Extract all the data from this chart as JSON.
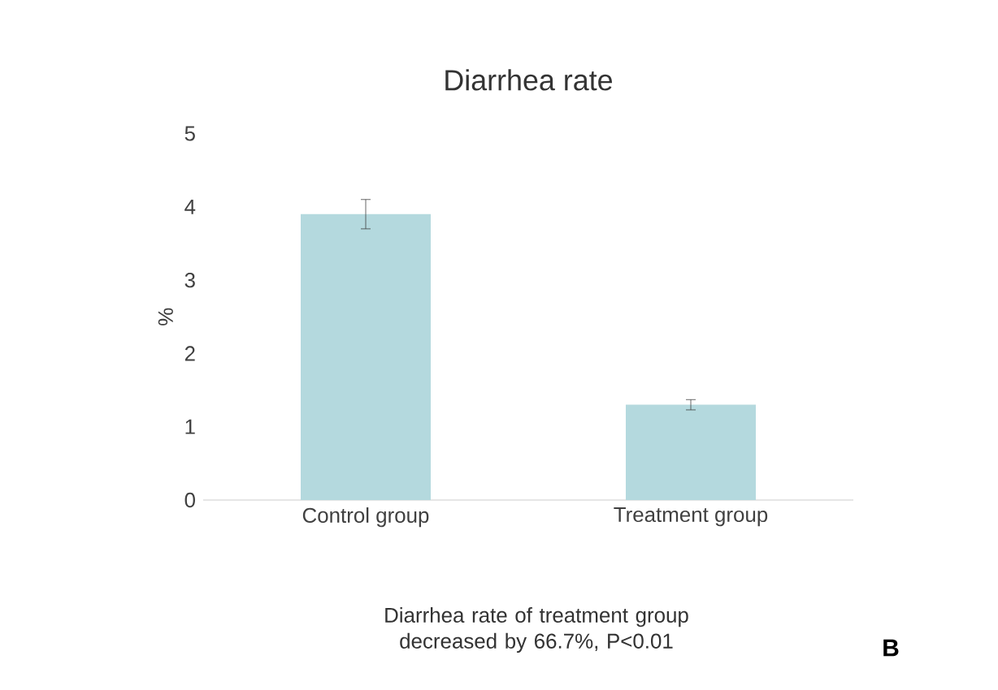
{
  "chart_data": {
    "type": "bar",
    "title": "Diarrhea rate",
    "ylabel": "%",
    "categories": [
      "Control group",
      "Treatment group"
    ],
    "values": [
      3.9,
      1.3
    ],
    "errors": [
      0.2,
      0.07
    ],
    "color": "#b4d9de",
    "ylim": [
      0,
      5
    ],
    "yticks": [
      0,
      1,
      2,
      3,
      4,
      5
    ],
    "grid": false,
    "annotations": [
      "Diarrhea rate of treatment group decreased by 66.7%, P<0.01",
      "**B**"
    ]
  }
}
